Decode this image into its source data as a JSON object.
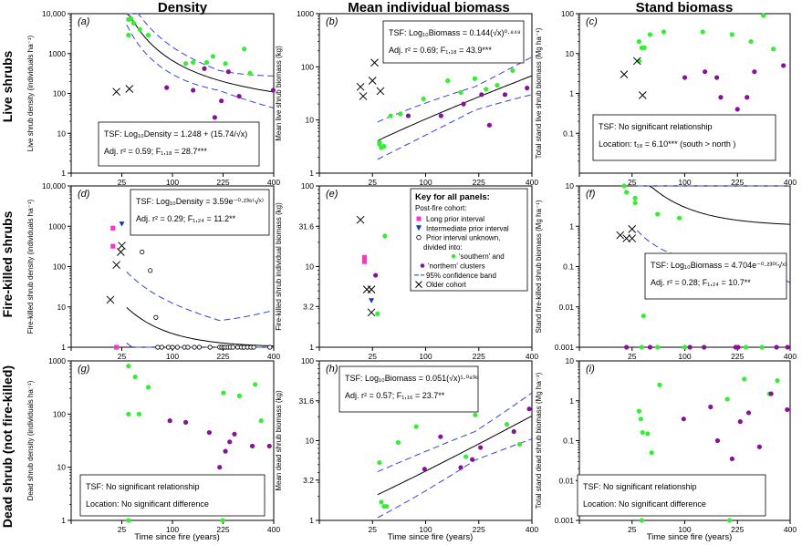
{
  "figure": {
    "col_titles": [
      "Density",
      "Mean individual biomass",
      "Stand biomass"
    ],
    "row_titles": [
      "Live shrubs",
      "Fire-killed shrubs",
      "Dead shrub (not fire-killed)"
    ],
    "x_label": "Time since fire (years)",
    "x_ticks": [
      0,
      25,
      100,
      225,
      400
    ],
    "x_tick_labels": [
      "",
      "25",
      "100",
      "225",
      "400"
    ],
    "colors": {
      "south": "#33ee33",
      "north": "#881199",
      "long": "#ff33cc",
      "inter": "#1133cc",
      "ci": "#3344dd",
      "fit": "#000000"
    }
  },
  "legend": {
    "title": "Key for all panels:",
    "subtitle": "Post-fire cohort:",
    "items": [
      {
        "marker": "square",
        "label": "Long prior interval"
      },
      {
        "marker": "triangle",
        "label": "Intermediate prior interval"
      },
      {
        "marker": "circle",
        "label": "Prior interval unknown,"
      },
      {
        "marker": "none",
        "label": "divided into:"
      },
      {
        "marker": "dot-south",
        "label": "'southern' and"
      },
      {
        "marker": "dot-north",
        "label": "'northern' clusters"
      },
      {
        "marker": "dash",
        "label": "95% confidence band"
      },
      {
        "marker": "cross",
        "label": "Older cohort"
      }
    ]
  },
  "chart_data": [
    {
      "id": "a",
      "letter": "(a)",
      "type": "scatter",
      "ylabel": "Live shrub density (individuals ha⁻¹)",
      "yscale": "log",
      "ylim": [
        1,
        10000
      ],
      "yticks": [
        1,
        10,
        100,
        1000,
        10000
      ],
      "ytick_labels": [
        "1",
        "10",
        "100",
        "1000",
        "10,000"
      ],
      "fit": "density_a",
      "stats": [
        "TSF: Log₁₀Density = 1.248 + (15.74/√x)",
        "Adj. r² = 0.59; F₁,₁₈ = 28.7***"
      ],
      "stats_anchor": "lower-center",
      "points": {
        "south": [
          [
            32,
            7200
          ],
          [
            35,
            7400
          ],
          [
            38,
            5800
          ],
          [
            32,
            2900
          ],
          [
            46,
            4000
          ],
          [
            58,
            2900
          ],
          [
            128,
            560
          ],
          [
            145,
            600
          ],
          [
            179,
            600
          ],
          [
            196,
            850
          ],
          [
            232,
            560
          ],
          [
            292,
            1300
          ],
          [
            312,
            320
          ]
        ],
        "north": [
          [
            89,
            140
          ],
          [
            145,
            120
          ],
          [
            173,
            420
          ],
          [
            201,
            25
          ],
          [
            220,
            65
          ],
          [
            241,
            350
          ],
          [
            275,
            85
          ],
          [
            398,
            120
          ]
        ],
        "long": [],
        "inter": [],
        "unknown": [],
        "older": [
          [
            15,
            2
          ],
          [
            20,
            110
          ],
          [
            33,
            130
          ]
        ]
      }
    },
    {
      "id": "b",
      "letter": "(b)",
      "type": "scatter",
      "ylabel": "Mean live shrub biomass (kg)",
      "yscale": "log",
      "ylim": [
        1,
        1000
      ],
      "yticks": [
        1,
        10,
        100,
        1000
      ],
      "ytick_labels": [
        "1",
        "10",
        "100",
        "1000"
      ],
      "fit": "biomass_b",
      "stats": [
        "TSF: Log₁₀Biomass = 0.144(√x)⁰·⁸⁴⁹",
        "Adj. r² = 0.69; F₁,₁₈ = 43.9***"
      ],
      "stats_anchor": "upper-right",
      "points": {
        "south": [
          [
            32,
            3.5
          ],
          [
            34,
            3.0
          ],
          [
            37,
            3.2
          ],
          [
            32,
            3.8
          ],
          [
            45,
            12
          ],
          [
            58,
            13
          ],
          [
            96,
            25
          ],
          [
            146,
            55
          ],
          [
            177,
            33
          ],
          [
            214,
            60
          ],
          [
            246,
            38
          ],
          [
            280,
            45
          ],
          [
            331,
            85
          ]
        ],
        "north": [
          [
            70,
            12
          ],
          [
            131,
            12
          ],
          [
            184,
            20
          ],
          [
            233,
            30
          ],
          [
            256,
            8
          ],
          [
            305,
            30
          ],
          [
            382,
            40
          ]
        ],
        "long": [],
        "inter": [],
        "unknown": [],
        "older": [
          [
            15,
            42
          ],
          [
            17,
            28
          ],
          [
            25,
            55
          ],
          [
            27,
            120
          ],
          [
            33,
            35
          ]
        ]
      }
    },
    {
      "id": "c",
      "letter": "(c)",
      "type": "scatter",
      "ylabel": "Total stand live shrub biomass (Mg ha⁻¹)",
      "yscale": "log",
      "ylim": [
        0.01,
        100
      ],
      "yticks": [
        0.1,
        1,
        10,
        100
      ],
      "ytick_labels": [
        "0.1",
        "1",
        "10",
        "100"
      ],
      "fit": null,
      "stats": [
        "TSF: No significant relationship",
        "Location: t₁₈ = 6.10*** (south > north )"
      ],
      "stats_anchor": "lower-left",
      "points": {
        "south": [
          [
            32,
            20
          ],
          [
            35,
            14
          ],
          [
            38,
            14
          ],
          [
            32,
            6.5
          ],
          [
            45,
            30
          ],
          [
            64,
            35
          ],
          [
            137,
            35
          ],
          [
            210,
            30
          ],
          [
            265,
            20
          ],
          [
            305,
            90
          ],
          [
            339,
            13
          ]
        ],
        "north": [
          [
            100,
            2.5
          ],
          [
            142,
            3.5
          ],
          [
            170,
            2.5
          ],
          [
            180,
            0.8
          ],
          [
            225,
            0.4
          ],
          [
            253,
            0.8
          ],
          [
            276,
            3.5
          ],
          [
            375,
            5
          ]
        ],
        "long": [],
        "inter": [],
        "unknown": [],
        "older": [
          [
            15,
            0.045
          ],
          [
            18,
            3
          ],
          [
            30,
            6.5
          ],
          [
            36,
            0.9
          ]
        ]
      }
    },
    {
      "id": "d",
      "letter": "(d)",
      "type": "scatter",
      "ylabel": "Fire-killed shrub density (individuals ha⁻¹)",
      "yscale": "log",
      "ylim": [
        1,
        10000
      ],
      "yticks": [
        1,
        10,
        100,
        1000,
        10000
      ],
      "ytick_labels": [
        "1",
        "10",
        "100",
        "1000",
        "10,000"
      ],
      "fit": "density_d",
      "stats": [
        "TSF: Log₁₀Density = 3.59e⁻⁰·²³⁶⁽√ˣ⁾",
        "Adj. r² = 0.29; F₁,₂₄ = 11.2**"
      ],
      "stats_anchor": "upper-right",
      "points": {
        "south": [],
        "north": [],
        "long": [
          [
            17,
            900
          ],
          [
            17,
            320
          ],
          [
            20,
            1
          ]
        ],
        "inter": [
          [
            25,
            1150
          ]
        ],
        "unknown": [
          [
            49,
            230
          ],
          [
            61,
            80
          ],
          [
            70,
            5.5
          ],
          [
            73,
            1
          ],
          [
            80,
            1
          ],
          [
            92,
            1
          ],
          [
            100,
            1
          ],
          [
            110,
            1
          ],
          [
            125,
            1
          ],
          [
            133,
            1
          ],
          [
            148,
            1
          ],
          [
            160,
            1
          ],
          [
            188,
            1
          ],
          [
            215,
            1
          ],
          [
            221,
            1
          ],
          [
            227,
            1
          ],
          [
            232,
            1
          ],
          [
            240,
            1
          ],
          [
            247,
            1
          ],
          [
            255,
            1
          ],
          [
            270,
            1
          ],
          [
            282,
            1
          ],
          [
            291,
            1
          ],
          [
            303,
            1
          ],
          [
            315,
            1
          ],
          [
            325,
            1
          ],
          [
            385,
            1
          ]
        ],
        "older": [
          [
            15,
            15
          ],
          [
            20,
            110
          ],
          [
            24,
            230
          ],
          [
            25,
            330
          ]
        ]
      }
    },
    {
      "id": "e",
      "letter": "(e)",
      "type": "scatter",
      "ylabel": "Fire-killed shrub individual biomass (kg)",
      "yscale": "log",
      "ylim": [
        1,
        100
      ],
      "yticks": [
        1,
        3.2,
        10,
        31.6,
        100
      ],
      "ytick_labels": [
        "1",
        "3.2",
        "10",
        "31.6",
        "100"
      ],
      "fit": null,
      "stats": [],
      "stats_anchor": "none",
      "points": {
        "south": [
          [
            30,
            2.6
          ],
          [
            38,
            24
          ]
        ],
        "north": [
          [
            28,
            7.8
          ]
        ],
        "long": [
          [
            18,
            13
          ],
          [
            18,
            11.5
          ]
        ],
        "inter": [
          [
            24,
            3.8
          ]
        ],
        "unknown": [],
        "older": [
          [
            15,
            38
          ],
          [
            20,
            5.2
          ],
          [
            24,
            5.2
          ],
          [
            24,
            2.7
          ]
        ]
      }
    },
    {
      "id": "f",
      "letter": "(f)",
      "type": "scatter",
      "ylabel": "Stand fire-killed shrub biomass (Mg ha⁻¹)",
      "yscale": "log",
      "ylim": [
        0.001,
        10
      ],
      "yticks": [
        0.001,
        0.01,
        0.1,
        1,
        10
      ],
      "ytick_labels": [
        "0.001",
        "0.01",
        "0.1",
        "1",
        "10"
      ],
      "fit": "biomass_f",
      "stats": [
        "TSF: Log₁₀Biomass = 4.704e⁻⁰·²³⁰⁽√ˣ⁾",
        "Adj. r² = 0.28; F₁,₂₄ = 10.7**"
      ],
      "stats_anchor": "right-mid",
      "points": {
        "south": [
          [
            18,
            14
          ],
          [
            20,
            7
          ],
          [
            28,
            5
          ],
          [
            28,
            3.8
          ],
          [
            55,
            2
          ],
          [
            90,
            1.6
          ],
          [
            37,
            0.006
          ],
          [
            35,
            0.001
          ],
          [
            55,
            0.001
          ],
          [
            100,
            0.001
          ],
          [
            250,
            0.001
          ],
          [
            300,
            0.001
          ]
        ],
        "north": [
          [
            20,
            0.001
          ],
          [
            45,
            0.001
          ],
          [
            110,
            0.001
          ],
          [
            140,
            0.001
          ],
          [
            220,
            0.001
          ],
          [
            227,
            0.001
          ],
          [
            350,
            0.001
          ],
          [
            390,
            0.001
          ]
        ],
        "long": [],
        "inter": [],
        "unknown": [],
        "older": [
          [
            15,
            0.6
          ],
          [
            20,
            0.5
          ],
          [
            25,
            0.85
          ],
          [
            25,
            0.5
          ]
        ]
      }
    },
    {
      "id": "g",
      "letter": "(g)",
      "type": "scatter",
      "ylabel": "Dead shrub density (individuals ha⁻¹)",
      "yscale": "log",
      "ylim": [
        1,
        1000
      ],
      "yticks": [
        1,
        10,
        100,
        1000
      ],
      "ytick_labels": [
        "1",
        "10",
        "100",
        "1000"
      ],
      "fit": null,
      "stats": [
        "TSF: No significant relationship",
        "Location: No significant difference"
      ],
      "stats_anchor": "lower-left",
      "points": {
        "south": [
          [
            32,
            800
          ],
          [
            40,
            500
          ],
          [
            58,
            320
          ],
          [
            32,
            100
          ],
          [
            45,
            100
          ],
          [
            226,
            250
          ],
          [
            276,
            220
          ],
          [
            330,
            360
          ],
          [
            352,
            75
          ],
          [
            32,
            1
          ],
          [
            224,
            1
          ]
        ],
        "north": [
          [
            95,
            75
          ],
          [
            128,
            70
          ],
          [
            186,
            45
          ],
          [
            215,
            10
          ],
          [
            232,
            20
          ],
          [
            245,
            30
          ],
          [
            260,
            42
          ],
          [
            320,
            25
          ],
          [
            383,
            25
          ]
        ],
        "long": [],
        "inter": [],
        "unknown": [],
        "older": []
      }
    },
    {
      "id": "h",
      "letter": "(h)",
      "type": "scatter",
      "ylabel": "Mean dead shrub biomass (kg)",
      "yscale": "log",
      "ylim": [
        1,
        100
      ],
      "yticks": [
        1,
        3.2,
        10,
        31.6,
        100
      ],
      "ytick_labels": [
        "1",
        "3.2",
        "10",
        "31.6",
        "100"
      ],
      "fit": "biomass_h",
      "stats": [
        "TSF: Log₁₀Biomass = 0.051(√x)¹·⁰⁸³⁶",
        "Adj. r² = 0.57; F₁,₁₆ = 23.7**"
      ],
      "stats_anchor": "upper-left",
      "points": {
        "south": [
          [
            32,
            5.3
          ],
          [
            34,
            1.7
          ],
          [
            37,
            1.5
          ],
          [
            40,
            1.5
          ],
          [
            55,
            9.5
          ],
          [
            83,
            15
          ],
          [
            190,
            6.3
          ],
          [
            215,
            21
          ],
          [
            311,
            16
          ],
          [
            355,
            9
          ]
        ],
        "north": [
          [
            98,
            4.4
          ],
          [
            130,
            11.2
          ],
          [
            177,
            4.6
          ],
          [
            207,
            5.8
          ],
          [
            230,
            8.2
          ],
          [
            335,
            13
          ],
          [
            390,
            25
          ]
        ],
        "long": [],
        "inter": [],
        "unknown": [],
        "older": []
      }
    },
    {
      "id": "i",
      "letter": "(i)",
      "type": "scatter",
      "ylabel": "Total stand dead shrub biomass (Mg ha⁻¹)",
      "yscale": "log",
      "ylim": [
        0.001,
        10
      ],
      "yticks": [
        0.001,
        0.01,
        0.1,
        1,
        10
      ],
      "ytick_labels": [
        "0.001",
        "0.01",
        "0.1",
        "1",
        "10"
      ],
      "fit": null,
      "stats": [
        "TSF: No significant relationship",
        "Location: No significant difference"
      ],
      "stats_anchor": "lower-left",
      "points": {
        "south": [
          [
            32,
            0.55
          ],
          [
            34,
            0.35
          ],
          [
            36,
            0.16
          ],
          [
            42,
            0.15
          ],
          [
            47,
            0.05
          ],
          [
            58,
            2.5
          ],
          [
            197,
            1.1
          ],
          [
            245,
            3.5
          ],
          [
            325,
            1.5
          ],
          [
            353,
            3.2
          ],
          [
            35,
            0.001
          ],
          [
            203,
            0.001
          ]
        ],
        "north": [
          [
            98,
            0.35
          ],
          [
            155,
            0.7
          ],
          [
            172,
            0.1
          ],
          [
            210,
            0.035
          ],
          [
            233,
            0.3
          ],
          [
            258,
            0.5
          ],
          [
            292,
            0.07
          ],
          [
            331,
            1.5
          ],
          [
            389,
            0.6
          ]
        ],
        "long": [],
        "inter": [],
        "unknown": [],
        "older": []
      }
    }
  ]
}
